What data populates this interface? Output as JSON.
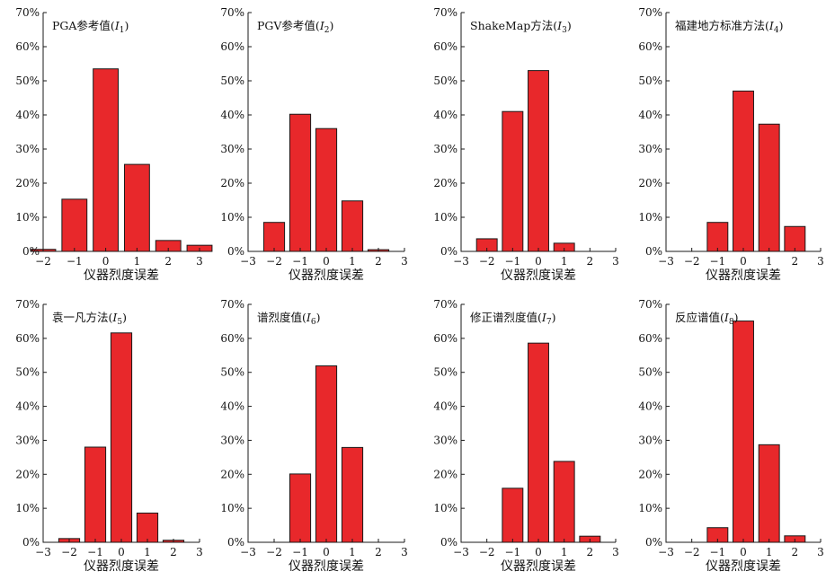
{
  "figure": {
    "xlabel": "仪器烈度误差",
    "y_tick_format": "percent"
  },
  "colors": {
    "bar_fill": "#e8282b",
    "bar_stroke": "#1a1a1a",
    "axis": "#1a1a1a"
  },
  "chart_data": [
    {
      "type": "bar",
      "title": "PGA参考值",
      "subscript": "1",
      "xlabel": "仪器烈度误差",
      "xlim": [
        -2,
        3
      ],
      "ylim": [
        0,
        70
      ],
      "x_ticks": [
        -2,
        -1,
        0,
        1,
        2,
        3
      ],
      "y_ticks": [
        0,
        10,
        20,
        30,
        40,
        50,
        60,
        70
      ],
      "categories": [
        -2,
        -1,
        0,
        1,
        2,
        3
      ],
      "values": [
        0.6,
        15.3,
        53.5,
        25.5,
        3.2,
        1.8
      ]
    },
    {
      "type": "bar",
      "title": "PGV参考值",
      "subscript": "2",
      "xlabel": "仪器烈度误差",
      "xlim": [
        -3,
        3
      ],
      "ylim": [
        0,
        70
      ],
      "x_ticks": [
        -3,
        -2,
        -1,
        0,
        1,
        2,
        3
      ],
      "y_ticks": [
        0,
        10,
        20,
        30,
        40,
        50,
        60,
        70
      ],
      "categories": [
        -2,
        -1,
        0,
        1,
        2
      ],
      "values": [
        8.5,
        40.2,
        36.0,
        14.8,
        0.5
      ]
    },
    {
      "type": "bar",
      "title": "ShakeMap方法",
      "subscript": "3",
      "xlabel": "仪器烈度误差",
      "xlim": [
        -3,
        3
      ],
      "ylim": [
        0,
        70
      ],
      "x_ticks": [
        -3,
        -2,
        -1,
        0,
        1,
        2,
        3
      ],
      "y_ticks": [
        0,
        10,
        20,
        30,
        40,
        50,
        60,
        70
      ],
      "categories": [
        -2,
        -1,
        0,
        1
      ],
      "values": [
        3.7,
        41.0,
        53.0,
        2.4
      ]
    },
    {
      "type": "bar",
      "title": "福建地方标准方法",
      "subscript": "4",
      "xlabel": "仪器烈度误差",
      "xlim": [
        -3,
        3
      ],
      "ylim": [
        0,
        70
      ],
      "x_ticks": [
        -3,
        -2,
        -1,
        0,
        1,
        2,
        3
      ],
      "y_ticks": [
        0,
        10,
        20,
        30,
        40,
        50,
        60,
        70
      ],
      "categories": [
        -1,
        0,
        1,
        2
      ],
      "values": [
        8.5,
        47.0,
        37.3,
        7.3
      ]
    },
    {
      "type": "bar",
      "title": "袁一凡方法",
      "subscript": "5",
      "xlabel": "仪器烈度误差",
      "xlim": [
        -3,
        3
      ],
      "ylim": [
        0,
        70
      ],
      "x_ticks": [
        -3,
        -2,
        -1,
        0,
        1,
        2,
        3
      ],
      "y_ticks": [
        0,
        10,
        20,
        30,
        40,
        50,
        60,
        70
      ],
      "categories": [
        -2,
        -1,
        0,
        1,
        2
      ],
      "values": [
        1.1,
        28.0,
        61.6,
        8.6,
        0.6
      ]
    },
    {
      "type": "bar",
      "title": "谱烈度值",
      "subscript": "6",
      "xlabel": "仪器烈度误差",
      "xlim": [
        -3,
        3
      ],
      "ylim": [
        0,
        70
      ],
      "x_ticks": [
        -3,
        -2,
        -1,
        0,
        1,
        2,
        3
      ],
      "y_ticks": [
        0,
        10,
        20,
        30,
        40,
        50,
        60,
        70
      ],
      "categories": [
        -1,
        0,
        1
      ],
      "values": [
        20.1,
        51.9,
        27.9
      ]
    },
    {
      "type": "bar",
      "title": "修正谱烈度值",
      "subscript": "7",
      "xlabel": "仪器烈度误差",
      "xlim": [
        -3,
        3
      ],
      "ylim": [
        0,
        70
      ],
      "x_ticks": [
        -3,
        -2,
        -1,
        0,
        1,
        2,
        3
      ],
      "y_ticks": [
        0,
        10,
        20,
        30,
        40,
        50,
        60,
        70
      ],
      "categories": [
        -1,
        0,
        1,
        2
      ],
      "values": [
        15.9,
        58.6,
        23.8,
        1.8
      ]
    },
    {
      "type": "bar",
      "title": "反应谱值",
      "subscript": "8",
      "xlabel": "仪器烈度误差",
      "xlim": [
        -3,
        3
      ],
      "ylim": [
        0,
        70
      ],
      "x_ticks": [
        -3,
        -2,
        -1,
        0,
        1,
        2,
        3
      ],
      "y_ticks": [
        0,
        10,
        20,
        30,
        40,
        50,
        60,
        70
      ],
      "categories": [
        -1,
        0,
        1,
        2
      ],
      "values": [
        4.3,
        65.1,
        28.7,
        1.9
      ]
    }
  ]
}
